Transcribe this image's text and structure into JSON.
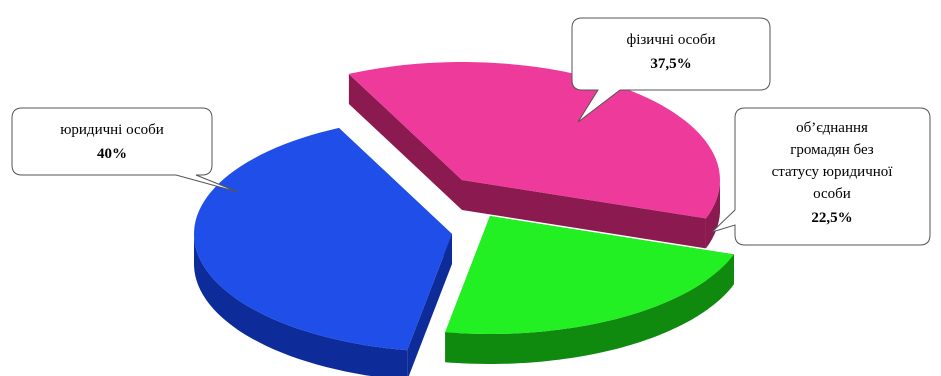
{
  "chart_data": {
    "type": "pie",
    "style": "3d-exploded",
    "title": "",
    "slices": [
      {
        "label": "юридичні особи",
        "value": 40,
        "display": "40%",
        "color": "#1f4fe8",
        "side_color": "#0d2c9a"
      },
      {
        "label": "фізичні особи",
        "value": 37.5,
        "display": "37,5%",
        "color": "#ee3a9a",
        "side_color": "#8a1a50"
      },
      {
        "label": "об’єднання громадян без статусу юридичної особи",
        "label_lines": [
          "об’єднання",
          "громадян без",
          "статусу юридичної",
          "особи"
        ],
        "value": 22.5,
        "display": "22,5%",
        "color": "#22f022",
        "side_color": "#0f8a0f"
      }
    ],
    "legend": "none",
    "data_labels": "callouts"
  }
}
